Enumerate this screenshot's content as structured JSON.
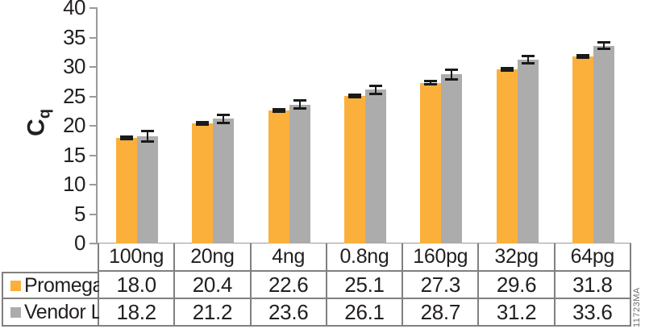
{
  "figure_id": "11723MA",
  "colors": {
    "promega": "#FBB03B",
    "vendor": "#ACACAC",
    "error_bar": "#1A1A1A",
    "axis": "#9A9A9A",
    "table_border": "#808080",
    "text": "#231F20",
    "watermark_text": "#6D6E71"
  },
  "chart_data": {
    "type": "bar",
    "title": "",
    "xlabel": "",
    "ylabel_base": "C",
    "ylabel_sub": "q",
    "ylim": [
      0,
      40
    ],
    "ytick_step": 5,
    "grid": false,
    "legend_position": "table-left-column",
    "categories": [
      "100ng",
      "20ng",
      "4ng",
      "0.8ng",
      "160pg",
      "32pg",
      "64pg"
    ],
    "series": [
      {
        "name": "Promega",
        "color_key": "promega",
        "values": [
          18.0,
          20.4,
          22.6,
          25.1,
          27.3,
          29.6,
          31.8
        ],
        "errors": [
          0.2,
          0.2,
          0.2,
          0.2,
          0.3,
          0.25,
          0.25
        ]
      },
      {
        "name": "Vendor L",
        "color_key": "vendor",
        "values": [
          18.2,
          21.2,
          23.6,
          26.1,
          28.7,
          31.2,
          33.6
        ],
        "errors": [
          0.9,
          0.7,
          0.7,
          0.7,
          0.8,
          0.6,
          0.55
        ]
      }
    ]
  }
}
